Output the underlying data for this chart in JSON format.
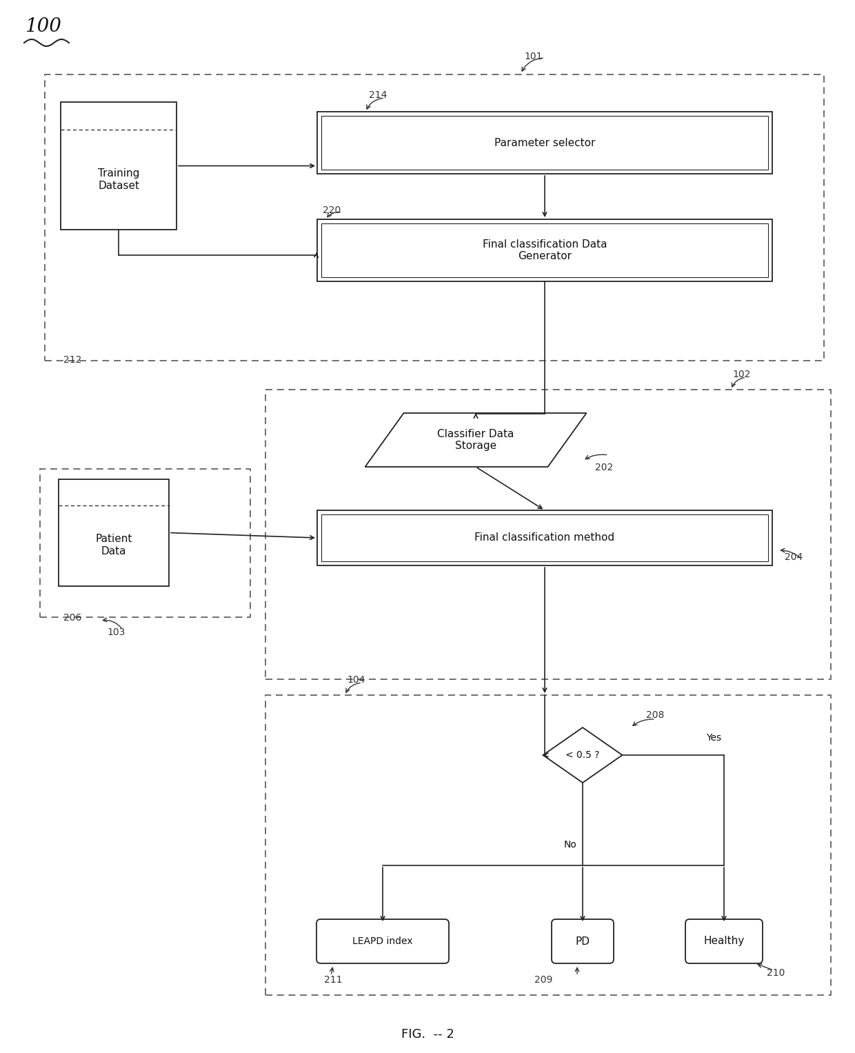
{
  "fig_label": "FIG.  -- 2",
  "bg_color": "#ffffff",
  "line_color": "#222222",
  "label_100": "100",
  "label_101": "101",
  "label_102": "102",
  "label_103": "103",
  "label_104": "104",
  "label_202": "202",
  "label_204": "204",
  "label_206": "206",
  "label_208": "208",
  "label_209": "209",
  "label_210": "210",
  "label_211": "211",
  "label_212": "212",
  "label_214": "214",
  "label_220": "220",
  "text_training": "Training\nDataset",
  "text_param_selector": "Parameter selector",
  "text_final_class_gen": "Final classification Data\nGenerator",
  "text_classifier_storage": "Classifier Data\nStorage",
  "text_patient_data": "Patient\nData",
  "text_final_class_method": "Final classification method",
  "text_diamond": "< 0.5 ?",
  "text_leapd": "LEAPD index",
  "text_pd": "PD",
  "text_healthy": "Healthy",
  "text_no": "No",
  "text_yes": "Yes"
}
